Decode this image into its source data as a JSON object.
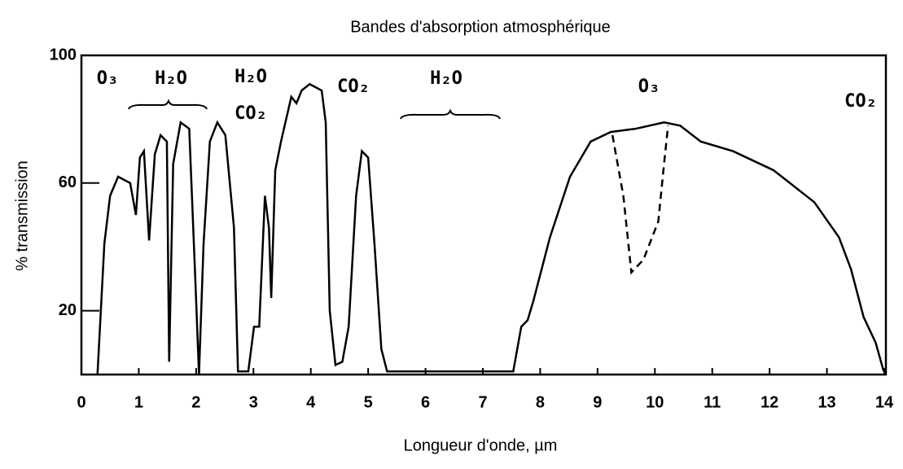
{
  "chart_data": {
    "type": "line",
    "title": "Bandes d'absorption atmosphérique",
    "xlabel": "Longueur d'onde, µm",
    "ylabel": "% transmission",
    "xlim": [
      0,
      14
    ],
    "xticks": [
      0,
      1,
      2,
      3,
      4,
      5,
      6,
      7,
      8,
      9,
      10,
      11,
      12,
      13,
      14
    ],
    "ylim": [
      0,
      100
    ],
    "yticks": [
      20,
      60,
      100
    ],
    "series": [
      {
        "color": "#000000",
        "linestyle": "solid",
        "x": [
          0.28,
          0.4,
          0.5,
          0.64,
          0.85,
          0.95,
          1.02,
          1.09,
          1.18,
          1.28,
          1.38,
          1.49,
          1.53,
          1.6,
          1.73,
          1.88,
          1.99,
          2.05,
          2.13,
          2.24,
          2.37,
          2.51,
          2.66,
          2.73,
          2.91,
          3.01,
          3.1,
          3.2,
          3.27,
          3.31,
          3.38,
          3.48,
          3.66,
          3.75,
          3.84,
          3.98,
          4.19,
          4.26,
          4.33,
          4.43,
          4.55,
          4.66,
          4.79,
          4.89,
          5.0,
          5.11,
          5.23,
          5.33,
          7.53,
          7.67,
          7.78,
          7.88,
          8.17,
          8.52,
          8.88,
          9.23,
          9.66,
          10.16,
          10.44,
          10.8,
          11.36,
          12.07,
          12.78,
          13.21,
          13.42,
          13.64,
          13.85,
          13.99
        ],
        "values": [
          0,
          41,
          56,
          62,
          60,
          50,
          68,
          70,
          42,
          69,
          75,
          73,
          4,
          66,
          79,
          77,
          28,
          0,
          41,
          73,
          79,
          75,
          46,
          1,
          1,
          15,
          15,
          56,
          46,
          24,
          64,
          73,
          87,
          85,
          89,
          91,
          89,
          79,
          20,
          3,
          4,
          15,
          56,
          70,
          68,
          41,
          8,
          1,
          1,
          15,
          17,
          23,
          43,
          62,
          73,
          76,
          77,
          79,
          78,
          73,
          70,
          64,
          54,
          43,
          33,
          18,
          10,
          1
        ]
      },
      {
        "color": "#000000",
        "linestyle": "dashed",
        "x": [
          9.26,
          9.45,
          9.59,
          9.8,
          10.06,
          10.16,
          10.23
        ],
        "values": [
          75,
          56,
          32,
          36,
          48,
          66,
          78
        ]
      }
    ],
    "annotations": [
      "O₃",
      "H₂O",
      "H₂O",
      "CO₂",
      "CO₂",
      "H₂O",
      "O₃",
      "CO₂"
    ]
  }
}
